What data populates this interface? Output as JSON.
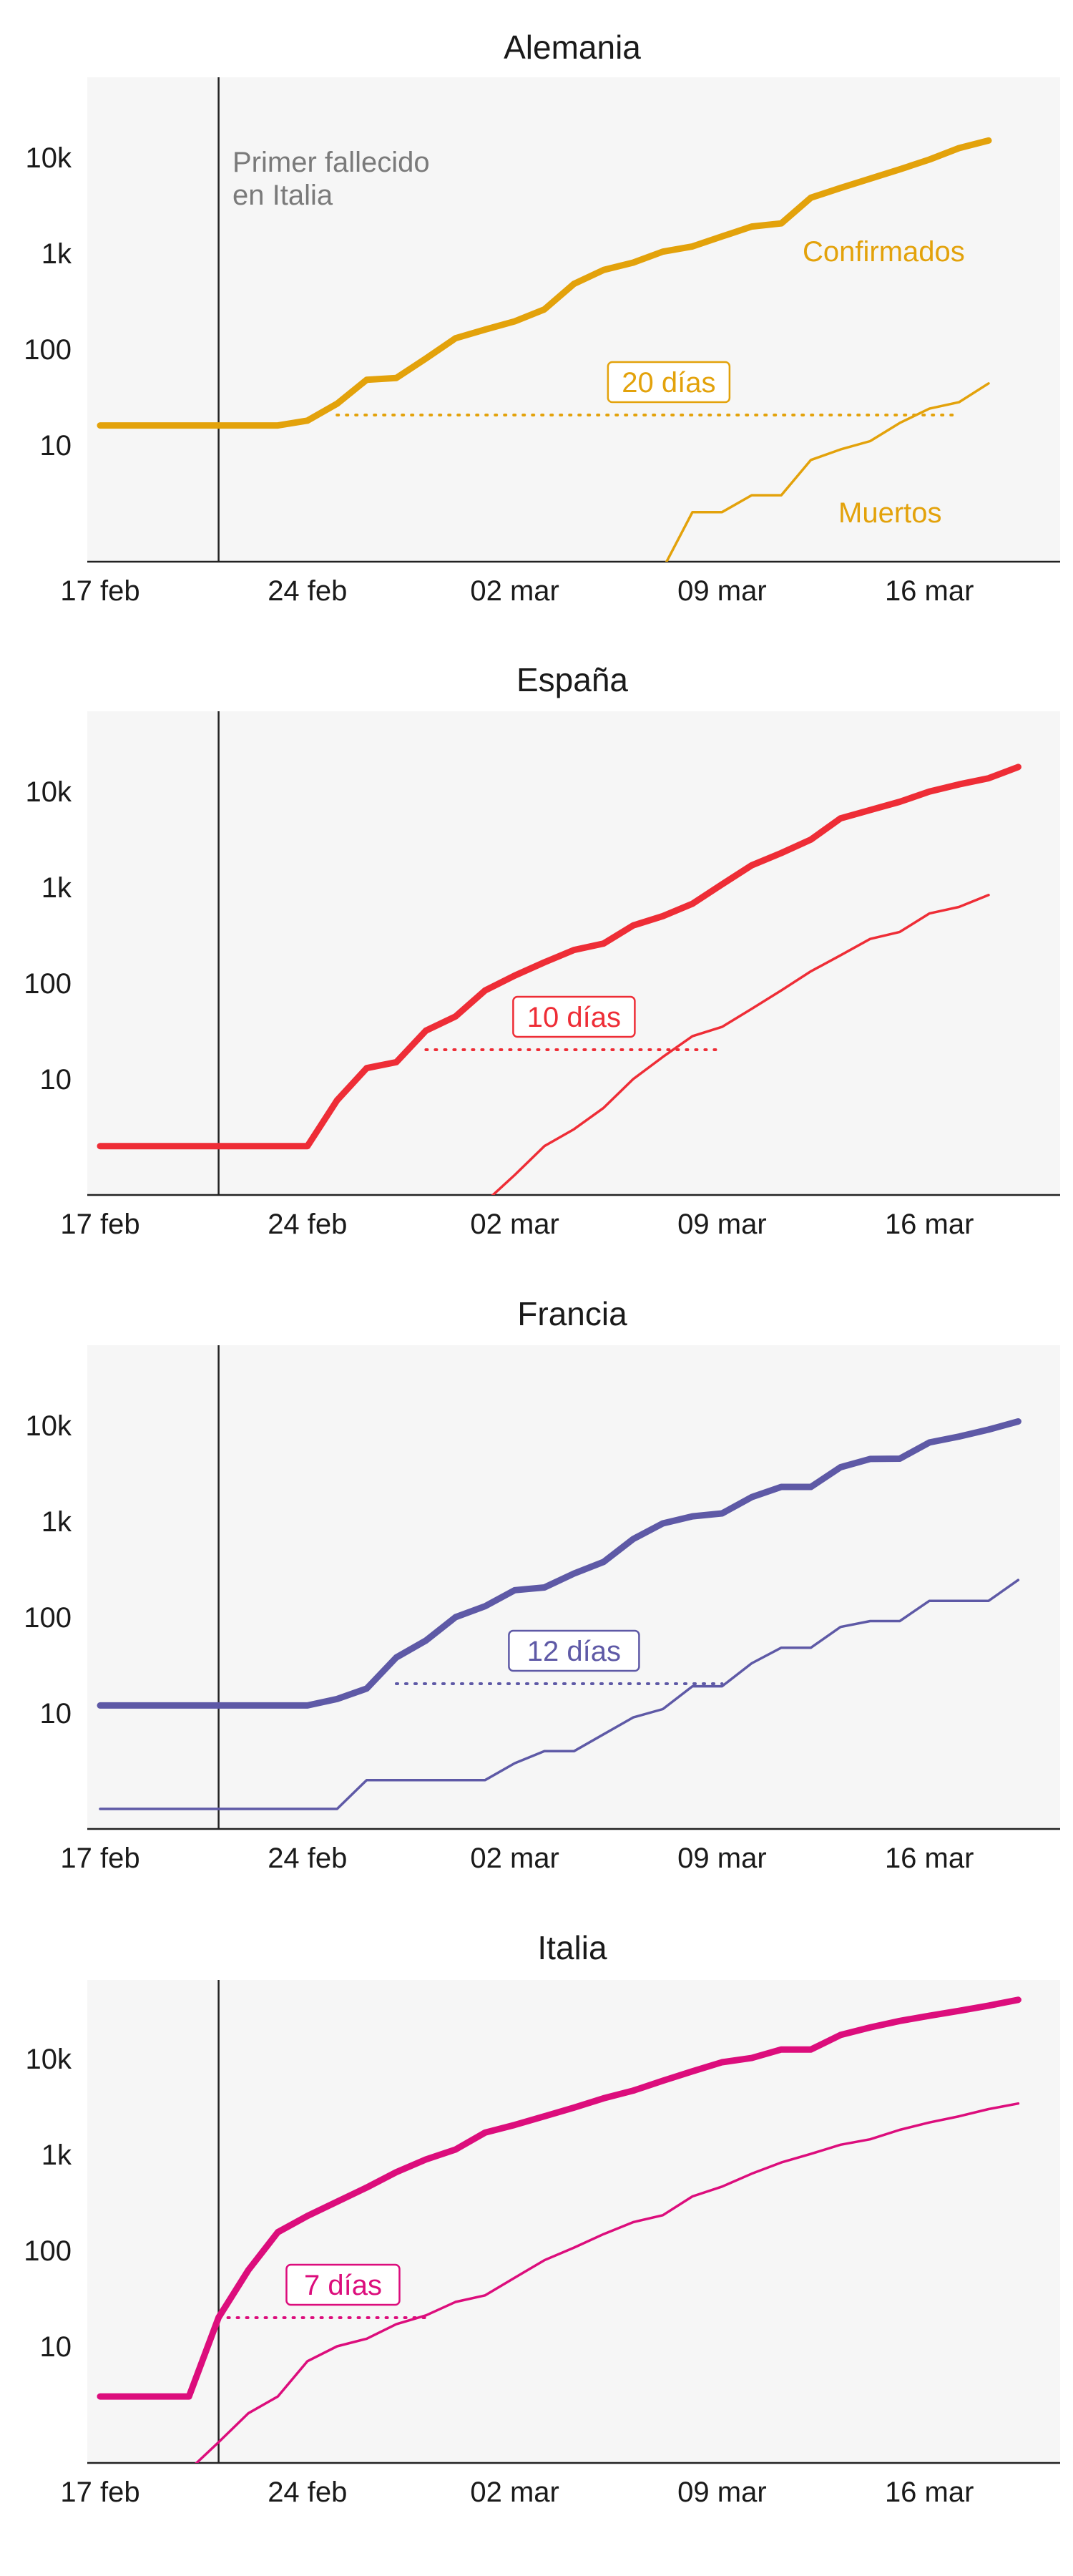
{
  "chart_data": [
    {
      "type": "line",
      "title": "Alemania",
      "color": "#e3a20b",
      "yscale": "log",
      "x_ticks": [
        "17 feb",
        "24 feb",
        "02 mar",
        "09 mar",
        "16 mar"
      ],
      "y_ticks": [
        "10",
        "100",
        "1k",
        "10k"
      ],
      "annotation": "Primer fallecido\nen Italia",
      "gap_label": "20 días",
      "series": [
        {
          "name": "Confirmados",
          "values": [
            16,
            16,
            16,
            16,
            16,
            16,
            16,
            18,
            27,
            48,
            50,
            80,
            130,
            160,
            195,
            260,
            480,
            670,
            800,
            1040,
            1180,
            1500,
            1900,
            2050,
            3800,
            4800,
            6000,
            7500,
            9500,
            12500,
            15000
          ]
        },
        {
          "name": "Muertos",
          "values": [
            null,
            null,
            null,
            null,
            null,
            null,
            null,
            null,
            null,
            null,
            null,
            null,
            null,
            null,
            null,
            null,
            null,
            null,
            null,
            null,
            2,
            2,
            3,
            3,
            7,
            9,
            11,
            17,
            24,
            28,
            44
          ]
        }
      ]
    },
    {
      "type": "line",
      "title": "España",
      "color": "#ee2d36",
      "yscale": "log",
      "x_ticks": [
        "17 feb",
        "24 feb",
        "02 mar",
        "09 mar",
        "16 mar"
      ],
      "y_ticks": [
        "10",
        "100",
        "1k",
        "10k"
      ],
      "gap_label": "10 días",
      "series": [
        {
          "name": "Confirmados",
          "values": [
            2,
            2,
            2,
            2,
            2,
            2,
            2,
            2,
            6,
            13,
            15,
            32,
            45,
            84,
            120,
            165,
            222,
            259,
            400,
            500,
            673,
            1073,
            1695,
            2277,
            3146,
            5232,
            6391,
            7798,
            9942,
            11826,
            13716,
            17963
          ]
        },
        {
          "name": "Muertos",
          "values": [
            null,
            null,
            null,
            null,
            null,
            null,
            null,
            null,
            null,
            null,
            null,
            null,
            null,
            null,
            1,
            2,
            3,
            5,
            10,
            17,
            28,
            35,
            54,
            84,
            133,
            195,
            289,
            342,
            533,
            623,
            830
          ]
        }
      ]
    },
    {
      "type": "line",
      "title": "Francia",
      "color": "#5e59a6",
      "yscale": "log",
      "x_ticks": [
        "17 feb",
        "24 feb",
        "02 mar",
        "09 mar",
        "16 mar"
      ],
      "y_ticks": [
        "10",
        "100",
        "1k",
        "10k"
      ],
      "gap_label": "12 días",
      "series": [
        {
          "name": "Confirmados",
          "values": [
            12,
            12,
            12,
            12,
            12,
            12,
            12,
            12,
            14,
            18,
            38,
            57,
            100,
            130,
            191,
            204,
            285,
            377,
            653,
            949,
            1126,
            1209,
            1784,
            2281,
            2281,
            3661,
            4469,
            4499,
            6633,
            7652,
            9043,
            10995
          ]
        },
        {
          "name": "Muertos",
          "values": [
            1,
            1,
            1,
            1,
            1,
            1,
            1,
            1,
            1,
            2,
            2,
            2,
            2,
            2,
            3,
            4,
            4,
            6,
            9,
            11,
            19,
            19,
            33,
            48,
            48,
            79,
            91,
            91,
            148,
            148,
            148,
            244
          ]
        }
      ]
    },
    {
      "type": "line",
      "title": "Italia",
      "color": "#dc0d7c",
      "yscale": "log",
      "x_ticks": [
        "17 feb",
        "24 feb",
        "02 mar",
        "09 mar",
        "16 mar"
      ],
      "y_ticks": [
        "10",
        "100",
        "1k",
        "10k"
      ],
      "gap_label": "7 días",
      "series": [
        {
          "name": "Confirmados",
          "values": [
            3,
            3,
            3,
            3,
            20,
            62,
            155,
            229,
            322,
            453,
            655,
            888,
            1128,
            1694,
            2036,
            2502,
            3089,
            3858,
            4636,
            5883,
            7375,
            9172,
            10149,
            12462,
            12462,
            17660,
            21157,
            24747,
            27980,
            31506,
            35713,
            41035
          ]
        },
        {
          "name": "Muertos",
          "values": [
            null,
            null,
            null,
            null,
            1,
            2,
            3,
            7,
            10,
            12,
            17,
            21,
            29,
            34,
            52,
            79,
            107,
            148,
            197,
            233,
            366,
            463,
            631,
            827,
            1016,
            1266,
            1441,
            1809,
            2158,
            2503,
            2978,
            3405
          ]
        }
      ]
    }
  ]
}
